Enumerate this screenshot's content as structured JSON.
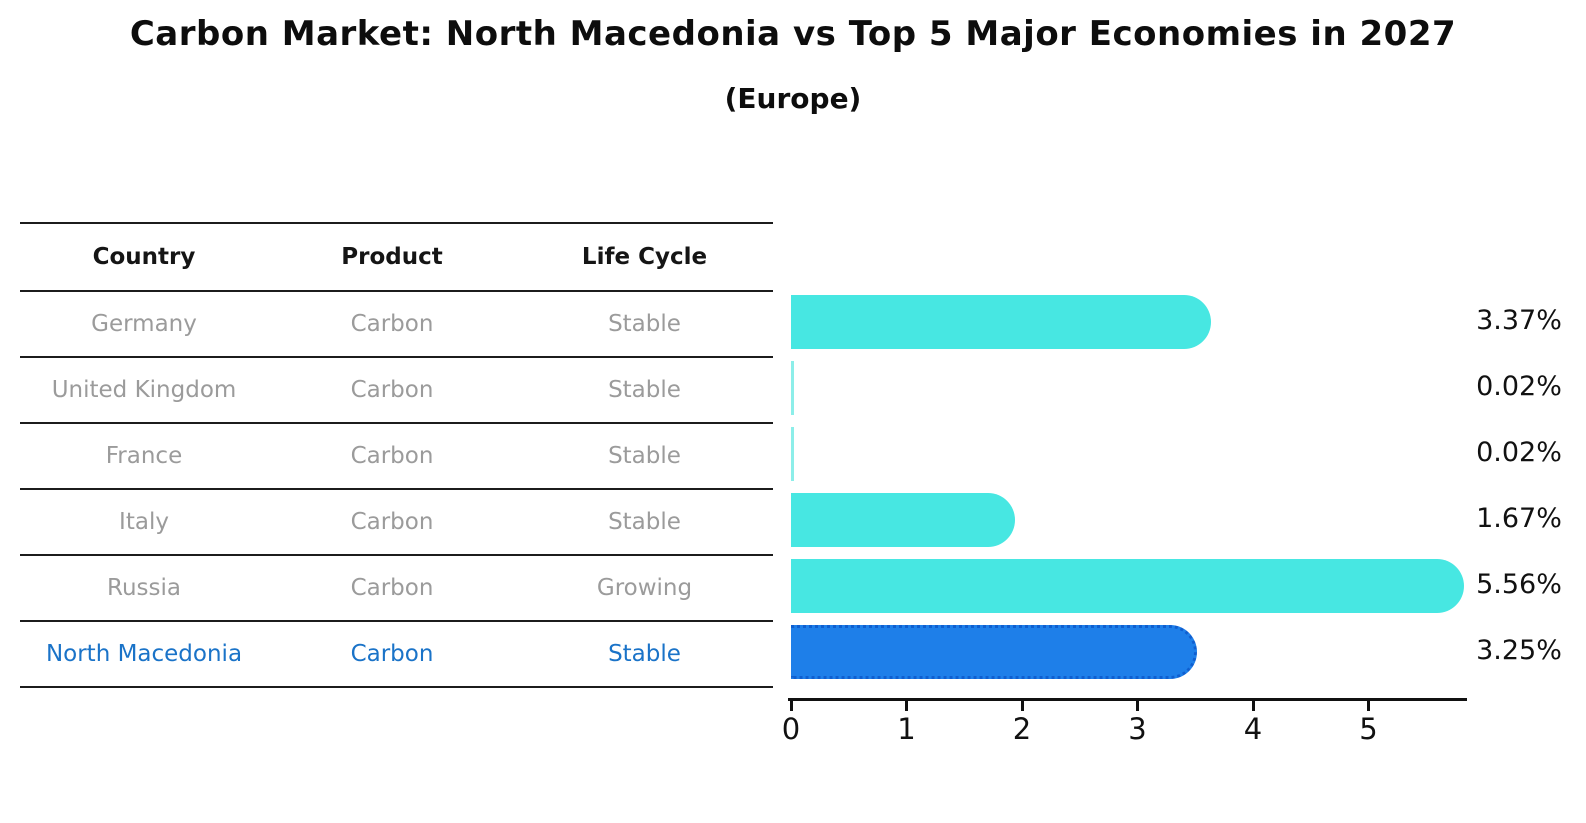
{
  "header": {
    "title": "Carbon Market: North Macedonia vs Top 5 Major Economies in 2027",
    "subtitle": "(Europe)"
  },
  "table": {
    "headers": [
      "Country",
      "Product",
      "Life Cycle"
    ],
    "rows": [
      {
        "country": "Germany",
        "product": "Carbon",
        "life_cycle": "Stable",
        "highlight": false
      },
      {
        "country": "United Kingdom",
        "product": "Carbon",
        "life_cycle": "Stable",
        "highlight": false
      },
      {
        "country": "France",
        "product": "Carbon",
        "life_cycle": "Stable",
        "highlight": false
      },
      {
        "country": "Italy",
        "product": "Carbon",
        "life_cycle": "Stable",
        "highlight": false
      },
      {
        "country": "Russia",
        "product": "Carbon",
        "life_cycle": "Growing",
        "highlight": false
      },
      {
        "country": "North Macedonia",
        "product": "Carbon",
        "life_cycle": "Stable",
        "highlight": true
      }
    ]
  },
  "chart_data": {
    "type": "bar",
    "orientation": "horizontal",
    "title": "Carbon Market: North Macedonia vs Top 5 Major Economies in 2027",
    "subtitle": "(Europe)",
    "categories": [
      "Germany",
      "United Kingdom",
      "France",
      "Italy",
      "Russia",
      "North Macedonia"
    ],
    "values": [
      3.37,
      0.02,
      0.02,
      1.67,
      5.56,
      3.25
    ],
    "value_labels": [
      "3.37%",
      "0.02%",
      "0.02%",
      "1.67%",
      "5.56%",
      "3.25%"
    ],
    "xticks": [
      "0",
      "1",
      "2",
      "3",
      "4",
      "5"
    ],
    "xlim": [
      0,
      5.85
    ],
    "grid": false,
    "legend": false,
    "highlight_index": 5,
    "bar_color": "#47e7e2",
    "highlight_color": "#1e7fe9",
    "highlight_border_color": "#0f5fd0",
    "highlight_text_color": "#1a73c8"
  }
}
